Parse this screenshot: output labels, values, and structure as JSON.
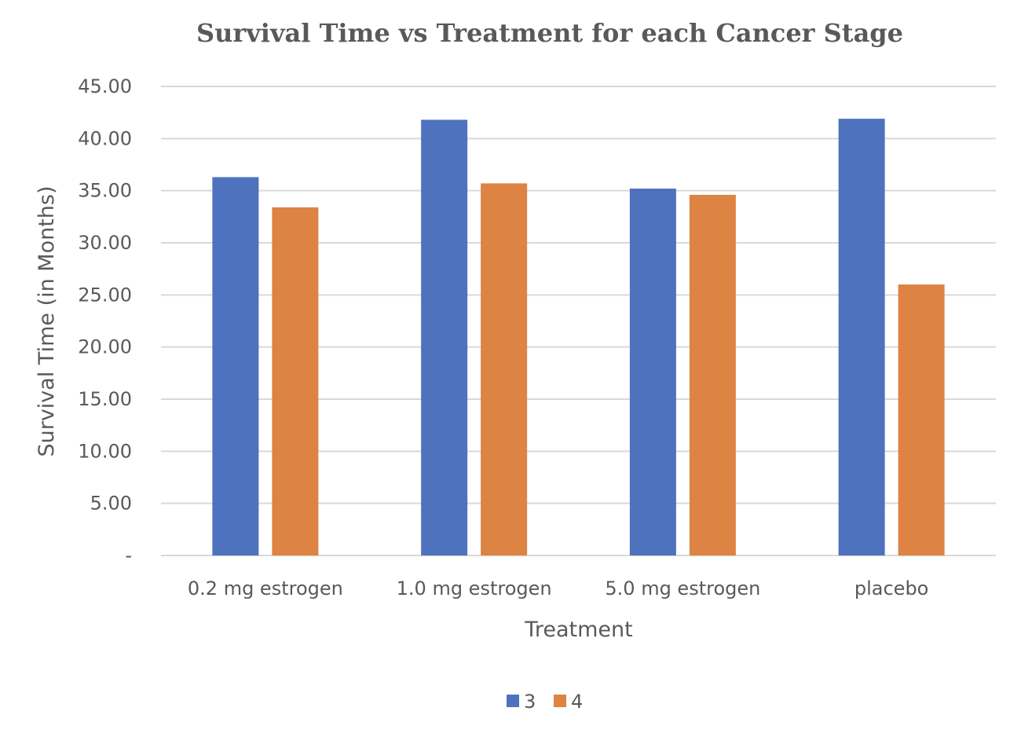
{
  "chart_data": {
    "type": "bar",
    "title": "Survival Time vs Treatment for each Cancer Stage",
    "xlabel": "Treatment",
    "ylabel": "Survival Time (in Months)",
    "categories": [
      "0.2 mg estrogen",
      "1.0 mg estrogen",
      "5.0 mg estrogen",
      "placebo"
    ],
    "series": [
      {
        "name": "3",
        "values": [
          36.3,
          41.8,
          35.2,
          41.9
        ],
        "color": "#4f72be"
      },
      {
        "name": "4",
        "values": [
          33.4,
          35.7,
          34.6,
          26.0
        ],
        "color": "#dd8344"
      }
    ],
    "ylim": [
      0,
      45
    ],
    "yticks": [
      0,
      5,
      10,
      15,
      20,
      25,
      30,
      35,
      40,
      45
    ],
    "ytick_labels": [
      "-",
      "5.00",
      "10.00",
      "15.00",
      "20.00",
      "25.00",
      "30.00",
      "35.00",
      "40.00",
      "45.00"
    ],
    "grid": true,
    "legend_position": "bottom"
  }
}
